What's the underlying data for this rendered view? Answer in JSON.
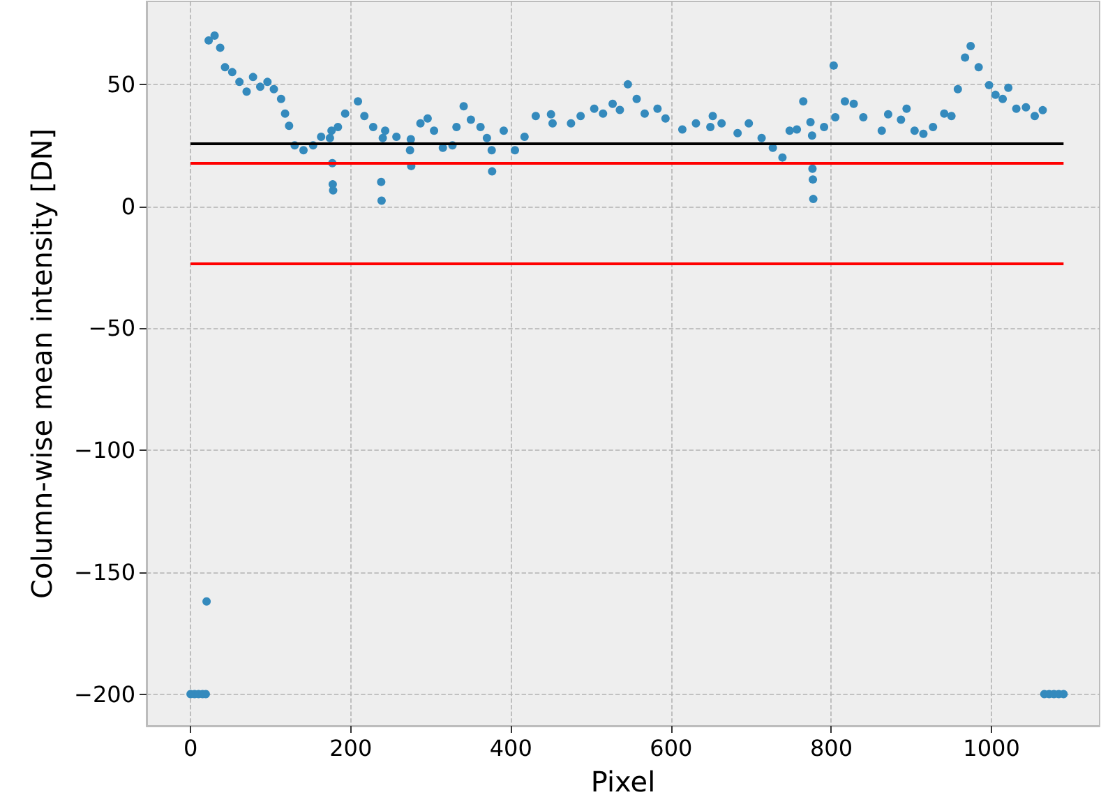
{
  "chart_data": {
    "type": "scatter",
    "xlabel": "Pixel",
    "ylabel": "Column-wise mean intensity [DN]",
    "xlim": [
      -55,
      1135
    ],
    "ylim": [
      -213,
      84
    ],
    "xticks": [
      0,
      200,
      400,
      600,
      800,
      1000
    ],
    "yticks": [
      {
        "value": -200,
        "label": "−200"
      },
      {
        "value": -150,
        "label": "−150"
      },
      {
        "value": -100,
        "label": "−100"
      },
      {
        "value": -50,
        "label": "−50"
      },
      0,
      50
    ],
    "grid": true,
    "marker": "circle",
    "series": [
      {
        "color": "#348abd",
        "x": [
          0,
          5,
          10,
          15,
          19,
          20,
          22.6,
          30,
          37,
          43,
          52,
          61,
          70,
          78,
          87,
          96,
          104,
          113,
          118,
          123,
          130,
          141,
          153,
          163,
          174,
          176,
          177,
          177.5,
          178,
          184,
          193,
          209,
          217,
          228,
          238,
          238.5,
          240,
          243,
          257,
          274,
          275,
          275.5,
          287,
          296,
          304,
          315,
          327,
          332,
          341,
          350,
          362,
          370,
          376,
          376.5,
          391,
          405,
          417,
          431,
          450,
          452,
          475,
          487,
          504,
          515,
          527,
          536,
          546,
          557,
          567,
          583,
          593,
          614,
          631,
          649,
          652,
          663,
          683,
          697,
          713,
          727,
          739,
          748,
          757,
          765,
          774,
          776,
          776.5,
          777,
          777.5,
          791,
          803,
          805,
          817,
          828,
          840,
          863,
          871,
          887,
          894,
          904,
          915,
          927,
          941,
          950,
          958,
          967,
          974,
          984,
          997,
          1005,
          1014,
          1021,
          1031,
          1043,
          1054,
          1064,
          1066,
          1072,
          1078,
          1084,
          1090
        ],
        "values": [
          -200,
          -200,
          -200,
          -200,
          -200,
          -162,
          68,
          70,
          65,
          57,
          55,
          51,
          47,
          53,
          49,
          51,
          48,
          44,
          38,
          33,
          25,
          23,
          25,
          28.5,
          28,
          31,
          17.7,
          9,
          6.5,
          32.5,
          38,
          43,
          37,
          32.5,
          10,
          2.3,
          28,
          31,
          28.5,
          23,
          27.5,
          16.5,
          34,
          36,
          31,
          24,
          25,
          32.5,
          41,
          35.5,
          32.5,
          28,
          23,
          14.3,
          31,
          23,
          28.5,
          37,
          37.7,
          34,
          34,
          37,
          40,
          38,
          42,
          39.5,
          50,
          44,
          38,
          40,
          36,
          31.5,
          34,
          32.5,
          37,
          34,
          30,
          34,
          28,
          24,
          20,
          31,
          31.5,
          43,
          34.5,
          29,
          15.4,
          11,
          3,
          32.5,
          57.7,
          36.5,
          43,
          42,
          36.5,
          31,
          37.7,
          35.5,
          40,
          31,
          29.7,
          32.5,
          38,
          37,
          48,
          61,
          65.7,
          57,
          49.7,
          45.7,
          44,
          48.6,
          40,
          40.6,
          37,
          39.4,
          -200,
          -200,
          -200,
          -200,
          -200
        ]
      }
    ],
    "ref_lines": [
      {
        "axis": "y",
        "value": 25.7,
        "color": "#000000"
      },
      {
        "axis": "y",
        "value": 17.7,
        "color": "#ff0000"
      },
      {
        "axis": "y",
        "value": -23.4,
        "color": "#ff0000"
      }
    ]
  }
}
